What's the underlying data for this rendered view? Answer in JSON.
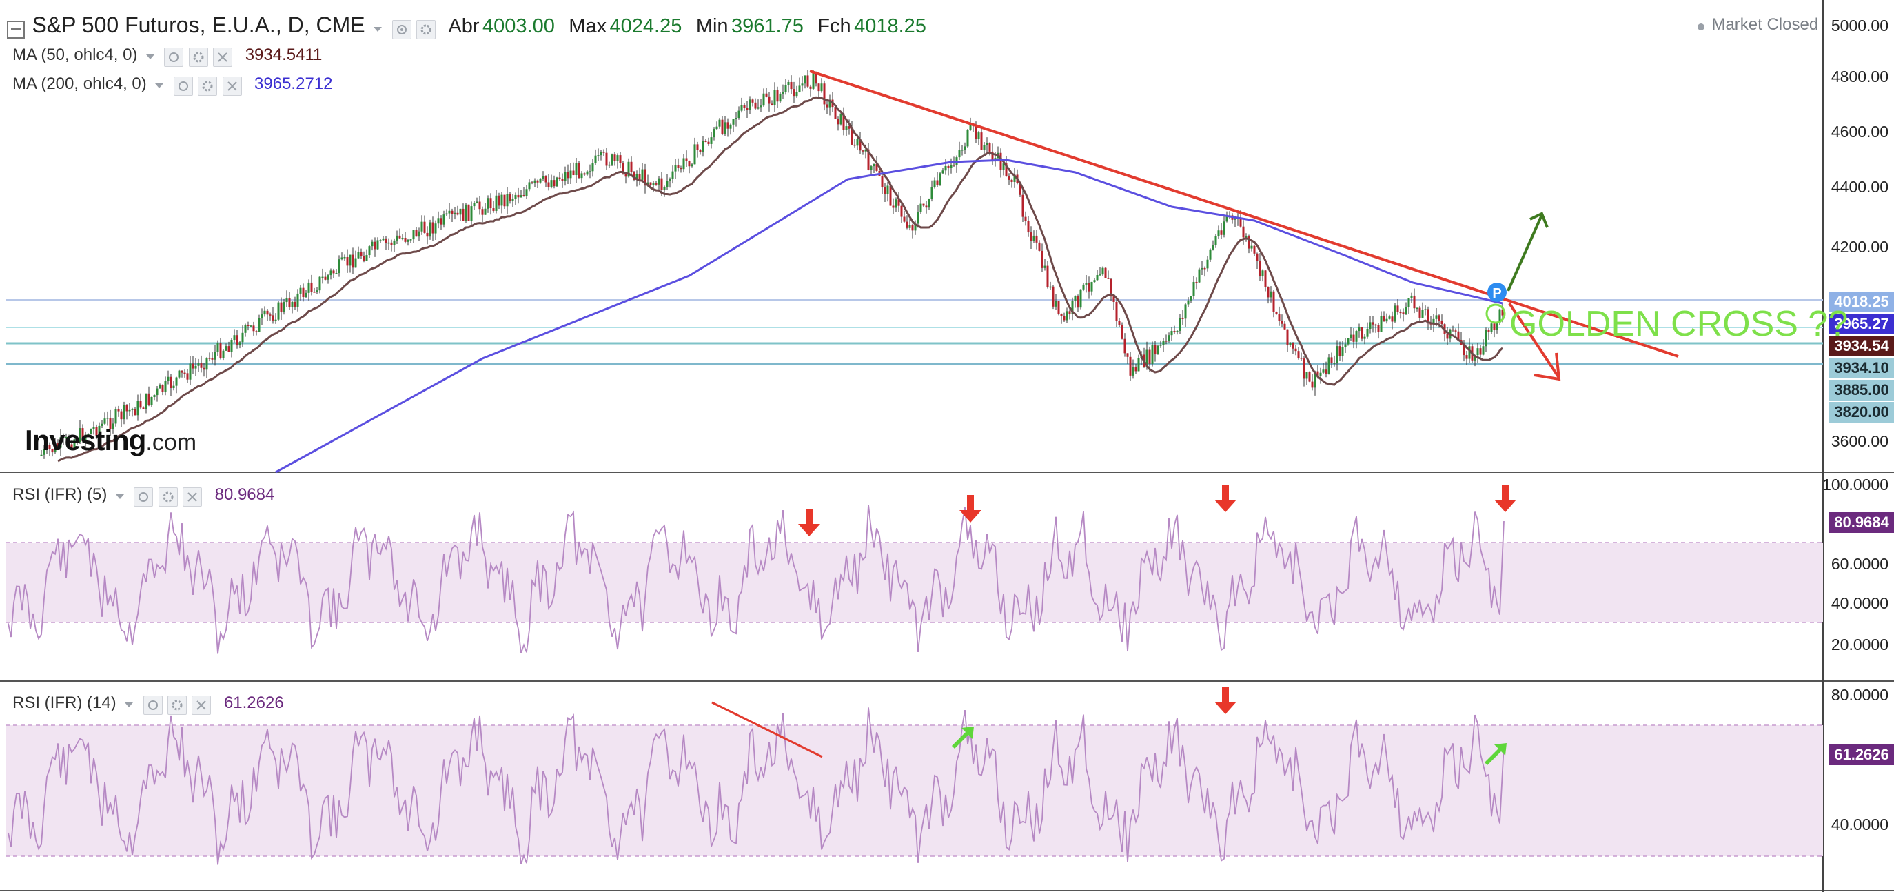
{
  "header": {
    "symbol_title": "S&P 500 Futuros, E.U.A., D, CME",
    "ohlc": [
      {
        "key": "Abr",
        "value": "4003.00"
      },
      {
        "key": "Max",
        "value": "4024.25"
      },
      {
        "key": "Min",
        "value": "3961.75"
      },
      {
        "key": "Fch",
        "value": "4018.25"
      }
    ],
    "market_status": "Market Closed"
  },
  "indicators": {
    "ma50": {
      "label": "MA (50, ohlc4, 0)",
      "value": "3934.5411",
      "color": "#5a1a1a"
    },
    "ma200": {
      "label": "MA (200, ohlc4, 0)",
      "value": "3965.2712",
      "color": "#3b2fd1"
    },
    "rsi5": {
      "label": "RSI (IFR) (5)",
      "value": "80.9684",
      "color": "#6b2a7e"
    },
    "rsi14": {
      "label": "RSI (IFR) (14)",
      "value": "61.2626",
      "color": "#6b2a7e"
    }
  },
  "price_axis": {
    "ticks": [
      "5000.00",
      "4800.00",
      "4600.00",
      "4400.00",
      "4200.00",
      "3600.00"
    ],
    "tags": [
      {
        "text": "4018.25",
        "color": "#8fb1e6"
      },
      {
        "text": "3965.27",
        "color": "#3b2fd1"
      },
      {
        "text": "3934.54",
        "color": "#5a1a1a"
      },
      {
        "text": "3934.10",
        "color": "#9ccbd8"
      },
      {
        "text": "3885.00",
        "color": "#9ccbd8"
      },
      {
        "text": "3820.00",
        "color": "#9ccbd8"
      }
    ]
  },
  "rsi5_axis": {
    "ticks": [
      "100.0000",
      "60.0000",
      "40.0000",
      "20.0000"
    ],
    "tag": {
      "text": "80.9684",
      "color": "#6b2a7e"
    }
  },
  "rsi14_axis": {
    "ticks": [
      "80.0000",
      "40.0000"
    ],
    "tag": {
      "text": "61.2626",
      "color": "#6b2a7e"
    }
  },
  "annotations": {
    "golden_cross_text": "GOLDEN CROSS ??",
    "marker_letter": "P"
  },
  "branding": {
    "logo_main": "Investing",
    "logo_suffix": ".com"
  },
  "colors": {
    "bull": "#2e8b3a",
    "bear": "#b5222c",
    "trendline": "#e23b2f",
    "arrow_up": "#3e7a1f",
    "rsi_band": "#f1e4f2",
    "signal_arrow": "#e8372a",
    "signal_arrow_green": "#5fd63a"
  }
}
